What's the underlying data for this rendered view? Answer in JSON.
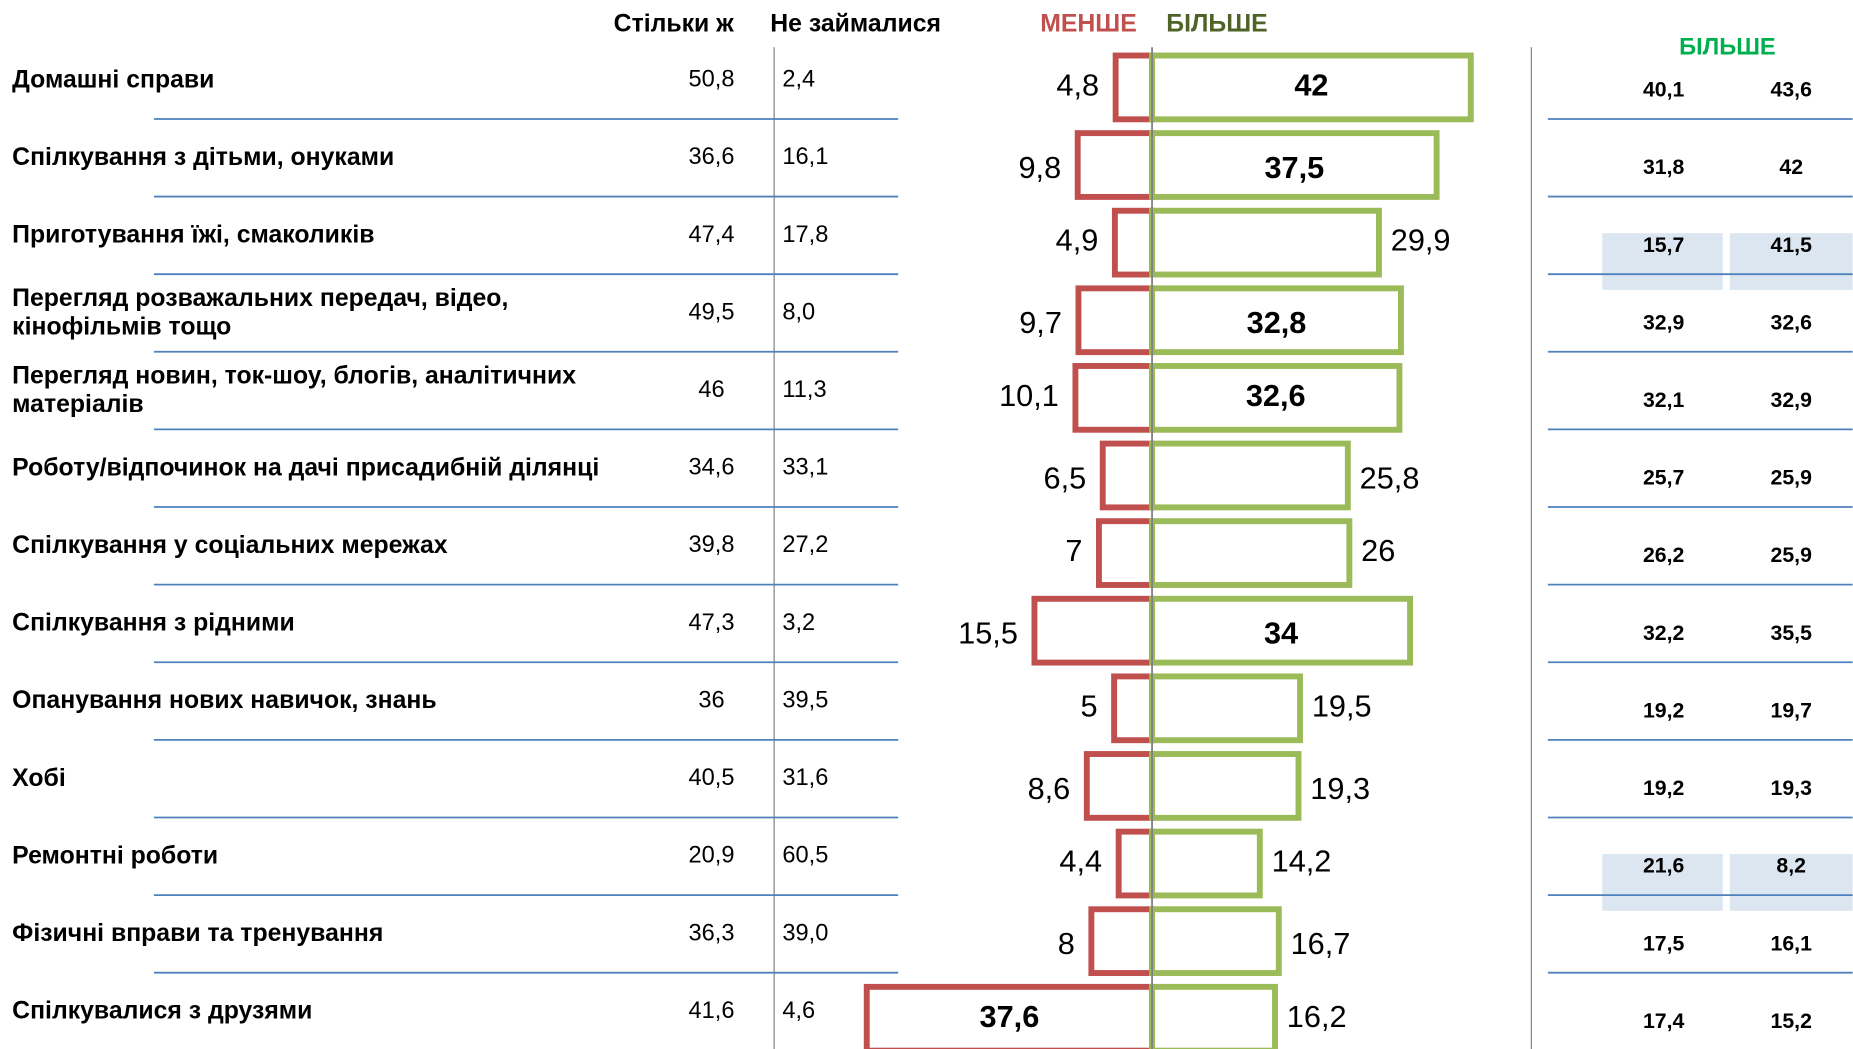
{
  "chart_data": {
    "type": "diverging_bar",
    "categories": [
      "Домашні справи",
      "Спілкування з дітьми, онуками",
      "Приготування їжі, смаколиків",
      "Перегляд розважальних передач, відео, кінофільмів тощо",
      "Перегляд новин, ток-шоу, блогів, аналітичних матеріалів",
      "Роботу/відпочинок на дачі присадибній ділянці",
      "Спілкування у соціальних мережах",
      "Спілкування з рідними",
      "Опанування нових навичок,  знань",
      "Хобі",
      "Ремонтні роботи",
      "Фізичні вправи та тренування",
      "Спілкувалися з друзями"
    ],
    "series": [
      {
        "name": "МЕНШЕ",
        "color": "#c0504d",
        "side": "left",
        "values": [
          4.8,
          9.8,
          4.9,
          9.7,
          10.1,
          6.5,
          7,
          15.5,
          5,
          8.6,
          4.4,
          8,
          37.6
        ],
        "value_labels": [
          "4,8",
          "9,8",
          "4,9",
          "9,7",
          "10,1",
          "6,5",
          "7",
          "15,5",
          "5",
          "8,6",
          "4,4",
          "8",
          "37,6"
        ]
      },
      {
        "name": "БІЛЬШЕ",
        "color": "#9bbb59",
        "legend_color": "#4f6228",
        "side": "right",
        "values": [
          42,
          37.5,
          29.9,
          32.8,
          32.6,
          25.8,
          26,
          34,
          19.5,
          19.3,
          14.2,
          16.7,
          16.2
        ],
        "value_labels": [
          "42",
          "37,5",
          "29,9",
          "32,8",
          "32,6",
          "25,8",
          "26",
          "34",
          "19,5",
          "19,3",
          "14,2",
          "16,7",
          "16,2"
        ]
      }
    ],
    "xlim": [
      -40,
      45
    ]
  },
  "table": {
    "headers": [
      "Стільки ж",
      "Не займалися"
    ],
    "same": [
      "50,8",
      "36,6",
      "47,4",
      "49,5",
      "46",
      "34,6",
      "39,8",
      "47,3",
      "36",
      "40,5",
      "20,9",
      "36,3",
      "41,6"
    ],
    "none": [
      "2,4",
      "16,1",
      "17,8",
      "8,0",
      "11,3",
      "33,1",
      "27,2",
      "3,2",
      "39,5",
      "31,6",
      "60,5",
      "39,0",
      "4,6"
    ]
  },
  "right_table": {
    "header": "БІЛЬШЕ",
    "header_color": "#00b050",
    "col1": [
      "40,1",
      "31,8",
      "15,7",
      "32,9",
      "32,1",
      "25,7",
      "26,2",
      "32,2",
      "19,2",
      "19,2",
      "21,6",
      "17,5",
      "17,4"
    ],
    "col2": [
      "43,6",
      "42",
      "41,5",
      "32,6",
      "32,9",
      "25,9",
      "25,9",
      "35,5",
      "19,7",
      "19,3",
      "8,2",
      "16,1",
      "15,2"
    ],
    "highlight_rows": [
      2,
      10
    ],
    "highlight_color": "#dce6f1"
  }
}
